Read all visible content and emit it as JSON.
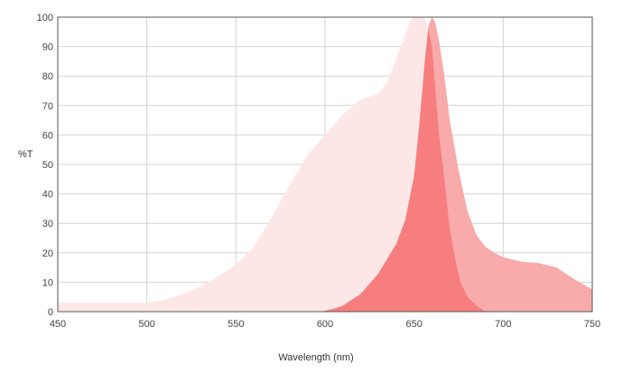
{
  "chart_data": {
    "type": "area",
    "xlabel": "Wavelength (nm)",
    "ylabel": "%T",
    "xlim": [
      450,
      750
    ],
    "ylim": [
      0,
      100
    ],
    "x_ticks": [
      450,
      500,
      550,
      600,
      650,
      700,
      750
    ],
    "y_ticks": [
      0,
      10,
      20,
      30,
      40,
      50,
      60,
      70,
      80,
      90,
      100
    ],
    "grid": true,
    "series": [
      {
        "color": "#fde6e6",
        "x": [
          450,
          480,
          500,
          510,
          520,
          530,
          540,
          550,
          560,
          570,
          580,
          590,
          600,
          610,
          620,
          630,
          635,
          640,
          645,
          648,
          650,
          655,
          657,
          659,
          661,
          663,
          665,
          668,
          670,
          673,
          676,
          680,
          685,
          690
        ],
        "y": [
          3,
          3,
          3,
          4,
          6,
          8.5,
          12,
          16,
          22,
          32,
          43,
          53,
          60,
          67,
          72,
          74,
          78,
          86,
          94,
          99,
          100,
          100,
          98,
          90,
          75,
          60,
          45,
          28,
          18,
          10,
          5,
          2,
          1,
          0
        ]
      },
      {
        "color": "#f9aaaa",
        "x": [
          598,
          605,
          610,
          620,
          630,
          640,
          645,
          650,
          653,
          656,
          658,
          660,
          662,
          664,
          667,
          670,
          675,
          680,
          685,
          690,
          695,
          700,
          710,
          720,
          730,
          740,
          750
        ],
        "y": [
          0,
          1,
          2,
          6,
          13,
          23,
          31,
          46,
          64,
          85,
          97,
          100,
          98,
          92,
          80,
          65,
          48,
          34,
          26,
          22,
          20,
          18.5,
          17,
          16.5,
          15,
          11,
          7.5
        ]
      },
      {
        "color": "#f77e7e",
        "x": [
          598,
          605,
          610,
          620,
          630,
          640,
          645,
          650,
          653,
          656,
          658,
          660,
          662,
          664,
          667,
          670,
          673,
          676,
          680,
          685,
          690
        ],
        "y": [
          0,
          1,
          2,
          6,
          13,
          23,
          31,
          46,
          64,
          85,
          96,
          90,
          75,
          60,
          45,
          28,
          18,
          10,
          5,
          2,
          0
        ]
      }
    ]
  }
}
